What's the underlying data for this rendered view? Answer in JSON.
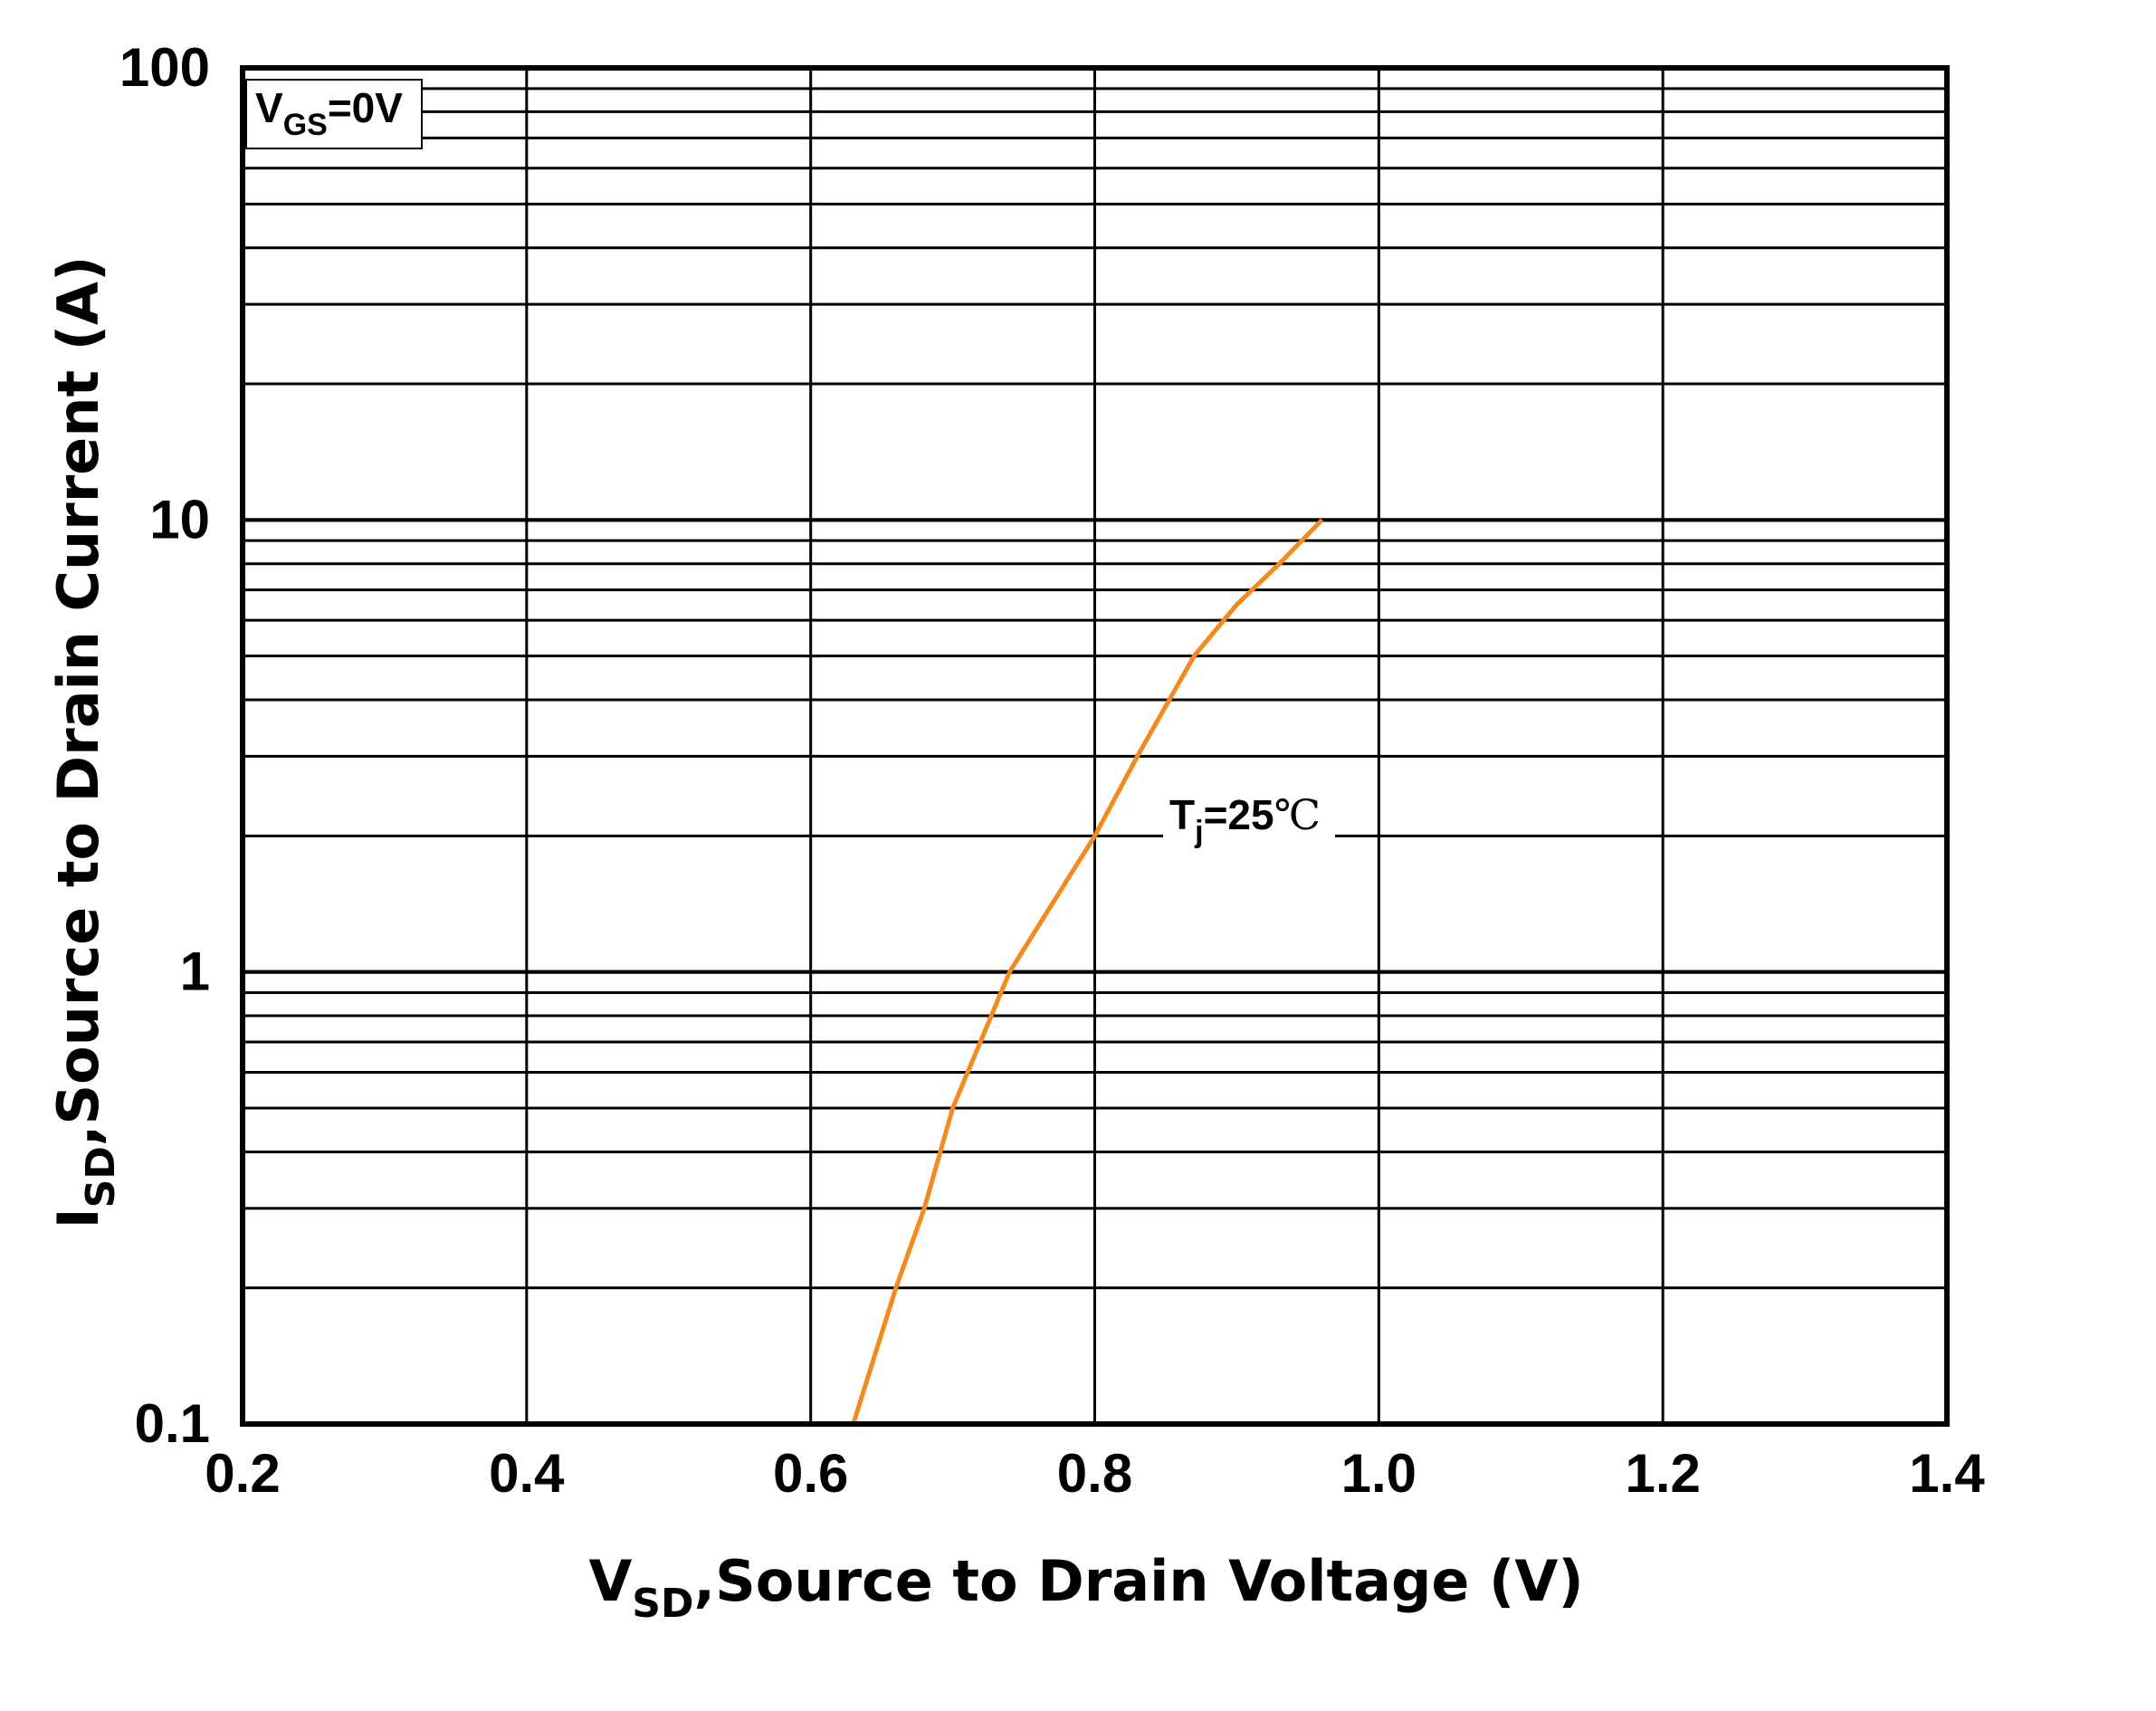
{
  "chart_data": {
    "type": "line",
    "title": "",
    "xlabel": {
      "main": "V",
      "sub": "SD",
      "rest": ",Source to Drain Voltage (V)"
    },
    "ylabel": {
      "main": "I",
      "sub": "SD",
      "rest": ",Source to Drain Current (A)"
    },
    "xlim": [
      0.2,
      1.4
    ],
    "ylim": [
      0.1,
      100
    ],
    "yscale": "log",
    "grid": true,
    "x_ticks": [
      0.2,
      0.4,
      0.6,
      0.8,
      1.0,
      1.2,
      1.4
    ],
    "x_tick_labels": [
      "0.2",
      "0.4",
      "0.6",
      "0.8",
      "1.0",
      "1.2",
      "1.4"
    ],
    "y_ticks": [
      0.1,
      1,
      10,
      100
    ],
    "y_tick_labels": [
      "0.1",
      "1",
      "10",
      "100"
    ],
    "legend_box": {
      "main": "V",
      "sub": "GS",
      "rest": "=0V",
      "placement": "top-left"
    },
    "series": [
      {
        "name": "Tj=25°C",
        "color": "#F28A1E",
        "label": {
          "main": "T",
          "sub": "j",
          "rest": "=25",
          "unit": "℃"
        },
        "points": [
          {
            "x": 0.63,
            "y": 0.1
          },
          {
            "x": 0.66,
            "y": 0.2
          },
          {
            "x": 0.68,
            "y": 0.3
          },
          {
            "x": 0.7,
            "y": 0.5
          },
          {
            "x": 0.74,
            "y": 1.0
          },
          {
            "x": 0.8,
            "y": 2.0
          },
          {
            "x": 0.83,
            "y": 3.0
          },
          {
            "x": 0.87,
            "y": 5.0
          },
          {
            "x": 0.9,
            "y": 6.5
          },
          {
            "x": 0.93,
            "y": 8.0
          },
          {
            "x": 0.96,
            "y": 10.0
          }
        ]
      }
    ]
  }
}
